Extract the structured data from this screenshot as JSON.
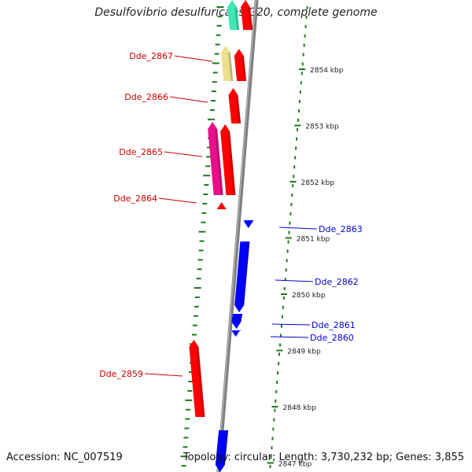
{
  "header": {
    "title": "Desulfovibrio desulfuricans G20, complete genome"
  },
  "footer": {
    "accession": "Accession: NC_007519",
    "summary": "Topology: circular; Length: 3,730,232 bp; Genes: 3,855"
  },
  "colors": {
    "forward_gene": "#ff0000",
    "reverse_gene": "#0000ff",
    "pink_gene": "#e8108a",
    "yellow_gene": "#ece08c",
    "teal_gene": "#3fe8b4",
    "backbone": "#808080",
    "tick": "#1a7a1a",
    "forward_label": "#cc0000",
    "reverse_label": "#0000cc"
  },
  "scale_labels": [
    "2854 kbp",
    "2853 kbp",
    "2852 kbp",
    "2851 kbp",
    "2850 kbp",
    "2849 kbp",
    "2848 kbp",
    "2847 kbp"
  ],
  "gene_labels": {
    "forward": [
      "Dde_2867",
      "Dde_2866",
      "Dde_2865",
      "Dde_2864",
      "Dde_2859"
    ],
    "reverse": [
      "Dde_2863",
      "Dde_2862",
      "Dde_2861",
      "Dde_2860"
    ]
  }
}
